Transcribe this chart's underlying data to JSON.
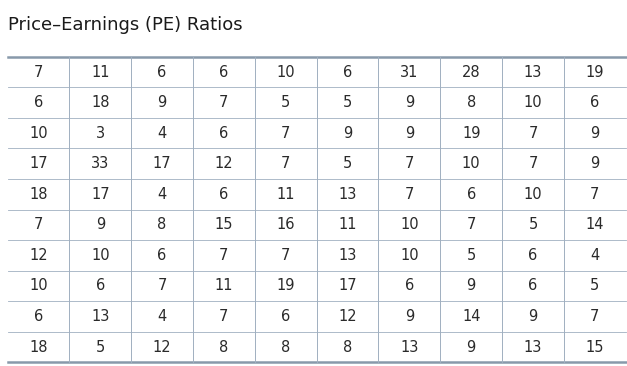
{
  "title": "Price–Earnings (PE) Ratios",
  "table_data": [
    [
      7,
      11,
      6,
      6,
      10,
      6,
      31,
      28,
      13,
      19
    ],
    [
      6,
      18,
      9,
      7,
      5,
      5,
      9,
      8,
      10,
      6
    ],
    [
      10,
      3,
      4,
      6,
      7,
      9,
      9,
      19,
      7,
      9
    ],
    [
      17,
      33,
      17,
      12,
      7,
      5,
      7,
      10,
      7,
      9
    ],
    [
      18,
      17,
      4,
      6,
      11,
      13,
      7,
      6,
      10,
      7
    ],
    [
      7,
      9,
      8,
      15,
      16,
      11,
      10,
      7,
      5,
      14
    ],
    [
      12,
      10,
      6,
      7,
      7,
      13,
      10,
      5,
      6,
      4
    ],
    [
      10,
      6,
      7,
      11,
      19,
      17,
      6,
      9,
      6,
      5
    ],
    [
      6,
      13,
      4,
      7,
      6,
      12,
      9,
      14,
      9,
      7
    ],
    [
      18,
      5,
      12,
      8,
      8,
      8,
      13,
      9,
      13,
      15
    ]
  ],
  "n_rows": 10,
  "n_cols": 10,
  "title_fontsize": 13,
  "cell_fontsize": 10.5,
  "title_color": "#1a1a1a",
  "cell_text_color": "#2a2a2a",
  "vert_line_color": "#a0afc0",
  "horiz_line_color": "#a0afc0",
  "border_line_color": "#8899aa",
  "top_line_color": "#8899aa",
  "fig_bg_color": "#ffffff"
}
